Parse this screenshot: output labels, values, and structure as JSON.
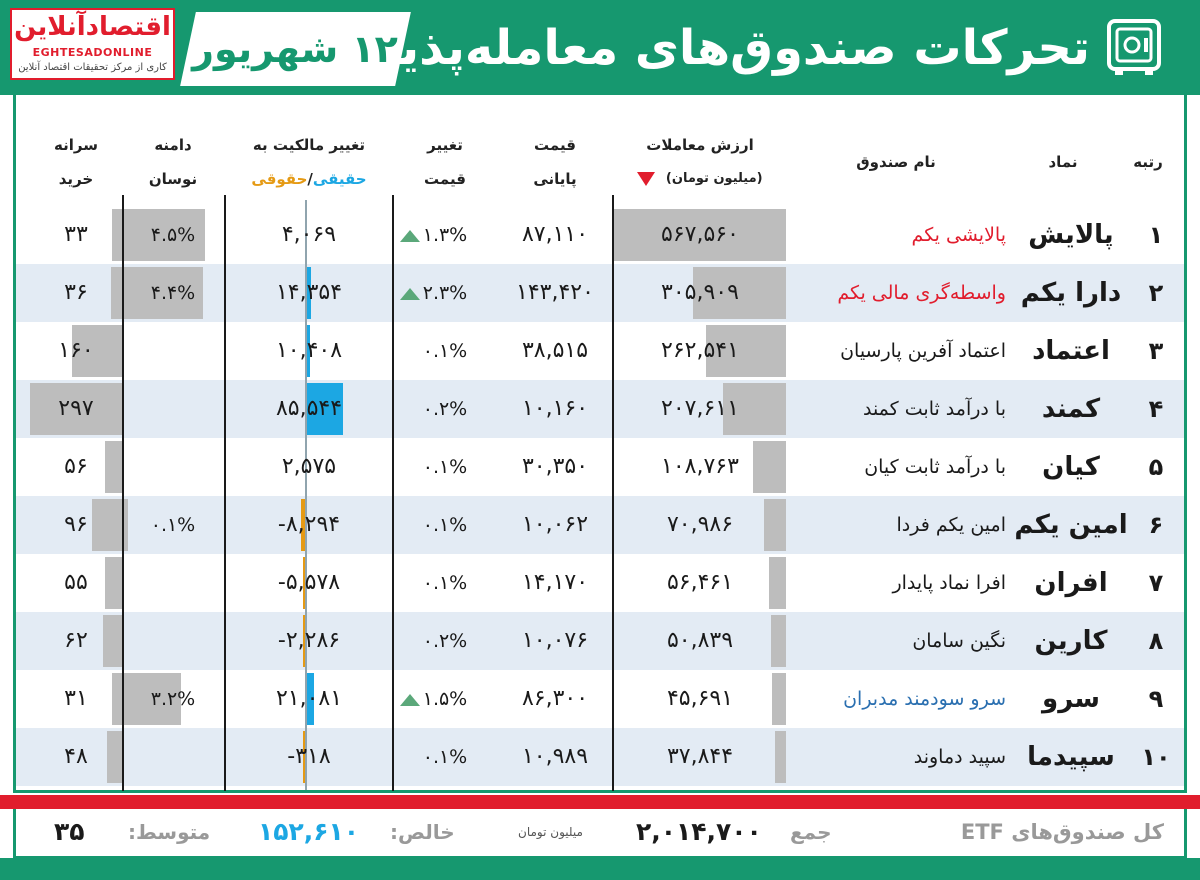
{
  "header": {
    "title": "تحرکات صندوق‌های معامله‌پذیر",
    "date": "۱۲ شهریور",
    "logo_text": "اقتصادآنلاین",
    "logo_en": "EGHTESADONLINE",
    "logo_sub": "کاری از مرکز تحقیقات اقتصاد آنلاین"
  },
  "columns": {
    "rank": "رتبه",
    "symbol": "نماد",
    "name": "نام صندوق",
    "volume_1": "ارزش معاملات",
    "volume_2": "(میلیون تومان)",
    "price_1": "قیمت",
    "price_2": "پایانی",
    "change_1": "تغییر",
    "change_2": "قیمت",
    "ownership_1": "تغییر مالکیت به",
    "ownership_2a": "حقیقی",
    "ownership_2b": "/",
    "ownership_2c": "حقوقی",
    "range_1": "دامنه",
    "range_2": "نوسان",
    "percapita_1": "سرانه",
    "percapita_2": "خرید"
  },
  "rows": [
    {
      "rank": "۱",
      "symbol": "پالایش",
      "name": "پالایشی یکم",
      "name_color": "#e11d2d",
      "volume": "۵۶۷,۵۶۰",
      "volume_raw": 567560,
      "price": "۸۷,۱۱۰",
      "change": "۱.۳%",
      "up": true,
      "ownership": "۴,۰۶۹",
      "ownership_raw": 4069,
      "range": "۴.۵%",
      "range_raw": 4.5,
      "percapita": "۳۳",
      "percapita_raw": 33
    },
    {
      "rank": "۲",
      "symbol": "دارا یکم",
      "name": "واسطه‌گری مالی یکم",
      "name_color": "#e11d2d",
      "volume": "۳۰۵,۹۰۹",
      "volume_raw": 305909,
      "price": "۱۴۳,۴۲۰",
      "change": "۲.۳%",
      "up": true,
      "ownership": "۱۴,۳۵۴",
      "ownership_raw": 14354,
      "range": "۴.۴%",
      "range_raw": 4.4,
      "percapita": "۳۶",
      "percapita_raw": 36
    },
    {
      "rank": "۳",
      "symbol": "اعتماد",
      "name": "اعتماد آفرین پارسیان",
      "name_color": "#1a1a1a",
      "volume": "۲۶۲,۵۴۱",
      "volume_raw": 262541,
      "price": "۳۸,۵۱۵",
      "change": "۰.۱%",
      "up": false,
      "ownership": "۱۰,۴۰۸",
      "ownership_raw": 10408,
      "range": "",
      "range_raw": 0,
      "percapita": "۱۶۰",
      "percapita_raw": 160
    },
    {
      "rank": "۴",
      "symbol": "کمند",
      "name": "با درآمد ثابت کمند",
      "name_color": "#1a1a1a",
      "volume": "۲۰۷,۶۱۱",
      "volume_raw": 207611,
      "price": "۱۰,۱۶۰",
      "change": "۰.۲%",
      "up": false,
      "ownership": "۸۵,۵۴۴",
      "ownership_raw": 85544,
      "range": "",
      "range_raw": 0,
      "percapita": "۲۹۷",
      "percapita_raw": 297
    },
    {
      "rank": "۵",
      "symbol": "کیان",
      "name": "با درآمد ثابت کیان",
      "name_color": "#1a1a1a",
      "volume": "۱۰۸,۷۶۳",
      "volume_raw": 108763,
      "price": "۳۰,۳۵۰",
      "change": "۰.۱%",
      "up": false,
      "ownership": "۲,۵۷۵",
      "ownership_raw": 2575,
      "range": "",
      "range_raw": 0,
      "percapita": "۵۶",
      "percapita_raw": 56
    },
    {
      "rank": "۶",
      "symbol": "امین یکم",
      "name": "امین یکم فردا",
      "name_color": "#1a1a1a",
      "volume": "۷۰,۹۸۶",
      "volume_raw": 70986,
      "price": "۱۰,۰۶۲",
      "change": "۰.۱%",
      "up": false,
      "ownership": "-۸,۲۹۴",
      "ownership_raw": -8294,
      "range": "۰.۱%",
      "range_raw": 0.1,
      "percapita": "۹۶",
      "percapita_raw": 96
    },
    {
      "rank": "۷",
      "symbol": "افران",
      "name": "افرا نماد پایدار",
      "name_color": "#1a1a1a",
      "volume": "۵۶,۴۶۱",
      "volume_raw": 56461,
      "price": "۱۴,۱۷۰",
      "change": "۰.۱%",
      "up": false,
      "ownership": "-۵,۵۷۸",
      "ownership_raw": -5578,
      "range": "",
      "range_raw": 0,
      "percapita": "۵۵",
      "percapita_raw": 55
    },
    {
      "rank": "۸",
      "symbol": "کارین",
      "name": "نگین سامان",
      "name_color": "#1a1a1a",
      "volume": "۵۰,۸۳۹",
      "volume_raw": 50839,
      "price": "۱۰,۰۷۶",
      "change": "۰.۲%",
      "up": false,
      "ownership": "-۲,۲۸۶",
      "ownership_raw": -2286,
      "range": "",
      "range_raw": 0,
      "percapita": "۶۲",
      "percapita_raw": 62
    },
    {
      "rank": "۹",
      "symbol": "سرو",
      "name": "سرو سودمند مدبران",
      "name_color": "#2a6fb0",
      "volume": "۴۵,۶۹۱",
      "volume_raw": 45691,
      "price": "۸۶,۳۰۰",
      "change": "۱.۵%",
      "up": true,
      "ownership": "۲۱,۰۸۱",
      "ownership_raw": 21081,
      "range": "۳.۲%",
      "range_raw": 3.2,
      "percapita": "۳۱",
      "percapita_raw": 31
    },
    {
      "rank": "۱۰",
      "symbol": "سپیدما",
      "name": "سپید دماوند",
      "name_color": "#1a1a1a",
      "volume": "۳۷,۸۴۴",
      "volume_raw": 37844,
      "price": "۱۰,۹۸۹",
      "change": "۰.۱%",
      "up": false,
      "ownership": "-۳۱۸",
      "ownership_raw": -318,
      "range": "",
      "range_raw": 0,
      "percapita": "۴۸",
      "percapita_raw": 48
    }
  ],
  "footer": {
    "label": "کل صندوق‌های ETF",
    "sum_label": "جمع",
    "sum_value": "۲,۰۱۴,۷۰۰",
    "unit": "میلیون تومان",
    "net_label": "خالص:",
    "net_value": "۱۵۲,۶۱۰",
    "avg_label": "متوسط:",
    "avg_value": "۳۵"
  },
  "colors": {
    "brand_green": "#16986f",
    "red": "#e11d2d",
    "buy_blue": "#1ca7e3",
    "sell_orange": "#e59a14",
    "bar_gray": "#bdbdbd",
    "row_alt": "#e3ebf4",
    "up_triangle": "#5ba87a"
  },
  "icons": {
    "title_icon": "safe-icon",
    "sort_indicator": "sort-down-icon",
    "up_indicator": "triangle-up-icon"
  }
}
